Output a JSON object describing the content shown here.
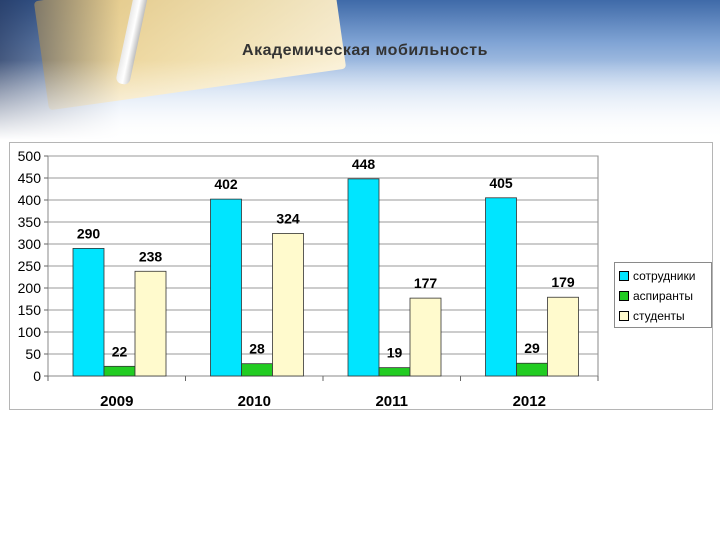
{
  "slide": {
    "title": "Академическая мобильность"
  },
  "colors": {
    "series": [
      "#00e5ff",
      "#22cc22",
      "#fffacd"
    ],
    "gridline": "#999999"
  },
  "chart_data": {
    "type": "bar",
    "title": "",
    "xlabel": "",
    "ylabel": "",
    "categories": [
      "2009",
      "2010",
      "2011",
      "2012"
    ],
    "series": [
      {
        "name": "сотрудники",
        "values": [
          290,
          402,
          448,
          405
        ]
      },
      {
        "name": "аспиранты",
        "values": [
          22,
          28,
          19,
          29
        ]
      },
      {
        "name": "студенты",
        "values": [
          238,
          324,
          177,
          179
        ]
      }
    ],
    "ylim": [
      0,
      500
    ],
    "yticks": [
      0,
      50,
      100,
      150,
      200,
      250,
      300,
      350,
      400,
      450,
      500
    ],
    "grid": true,
    "legend_position": "right"
  }
}
